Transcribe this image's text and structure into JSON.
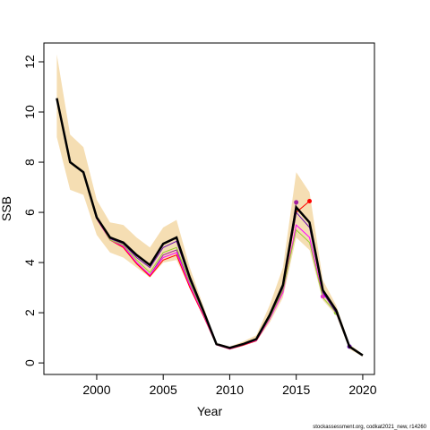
{
  "chart_data": {
    "type": "line",
    "xlabel": "Year",
    "ylabel": "SSB",
    "footnote": "stockassessment.org, codkat2021_new, r14260",
    "x": [
      1997,
      1998,
      1999,
      2000,
      2001,
      2002,
      2003,
      2004,
      2005,
      2006,
      2007,
      2008,
      2009,
      2010,
      2011,
      2012,
      2013,
      2014,
      2015,
      2016,
      2017,
      2018,
      2019,
      2020
    ],
    "band": {
      "color": "#f5deb3",
      "upper": [
        12.3,
        9.1,
        8.6,
        6.5,
        5.6,
        5.5,
        5.0,
        4.6,
        5.4,
        5.7,
        3.8,
        2.3,
        0.8,
        0.65,
        0.85,
        1.1,
        2.3,
        3.8,
        7.6,
        6.8,
        3.3,
        2.3,
        0.75,
        0.35
      ],
      "lower": [
        9.0,
        6.9,
        6.7,
        5.1,
        4.4,
        4.2,
        3.8,
        3.4,
        4.0,
        4.1,
        3.0,
        1.9,
        0.7,
        0.55,
        0.7,
        0.85,
        1.6,
        2.6,
        5.0,
        4.5,
        2.5,
        1.9,
        0.55,
        0.25
      ]
    },
    "series": [
      {
        "color": "#a020a0",
        "values": [
          10.5,
          8.0,
          7.6,
          5.75,
          4.9,
          4.65,
          4.0,
          3.5,
          4.3,
          4.5,
          3.1,
          1.95,
          0.73,
          0.56,
          0.72,
          0.9,
          1.8,
          3.0,
          6.4,
          null,
          null,
          null,
          null,
          null
        ]
      },
      {
        "color": "#ff0000",
        "values": [
          10.5,
          8.0,
          7.6,
          5.75,
          4.9,
          4.6,
          3.95,
          3.45,
          4.1,
          4.3,
          3.0,
          1.9,
          0.72,
          0.55,
          0.7,
          0.88,
          1.75,
          2.9,
          6.0,
          6.45,
          null,
          null,
          null,
          null
        ]
      },
      {
        "color": "#ff00ff",
        "values": [
          10.5,
          8.0,
          7.6,
          5.75,
          4.9,
          4.65,
          4.0,
          3.5,
          4.2,
          4.4,
          3.1,
          1.95,
          0.72,
          0.56,
          0.72,
          0.9,
          1.75,
          2.8,
          5.5,
          5.0,
          2.65,
          null,
          null,
          null
        ]
      },
      {
        "color": "#9acd32",
        "values": [
          10.5,
          8.0,
          7.6,
          5.8,
          4.9,
          4.7,
          4.1,
          3.6,
          4.4,
          4.6,
          3.2,
          2.0,
          0.73,
          0.57,
          0.73,
          0.92,
          1.8,
          2.9,
          5.3,
          4.8,
          2.6,
          2.0,
          null,
          null
        ]
      },
      {
        "color": "#6a0dad",
        "values": [
          10.5,
          8.0,
          7.6,
          5.8,
          4.95,
          4.75,
          4.2,
          3.8,
          4.6,
          4.85,
          3.3,
          2.05,
          0.75,
          0.58,
          0.75,
          0.95,
          1.85,
          3.0,
          6.0,
          5.4,
          2.8,
          2.0,
          0.65,
          null
        ]
      },
      {
        "color": "#000000",
        "values": [
          10.55,
          8.0,
          7.6,
          5.8,
          5.0,
          4.8,
          4.3,
          3.9,
          4.75,
          5.0,
          3.4,
          2.1,
          0.75,
          0.6,
          0.75,
          0.95,
          1.9,
          3.1,
          6.2,
          5.6,
          2.9,
          2.1,
          0.65,
          0.3
        ]
      }
    ],
    "xlim": [
      1996.03,
      2020.88
    ],
    "ylim": [
      -0.46,
      12.75
    ],
    "xticks": [
      2000,
      2005,
      2010,
      2015,
      2020
    ],
    "yticks": [
      0,
      2,
      4,
      6,
      8,
      10,
      12
    ]
  }
}
